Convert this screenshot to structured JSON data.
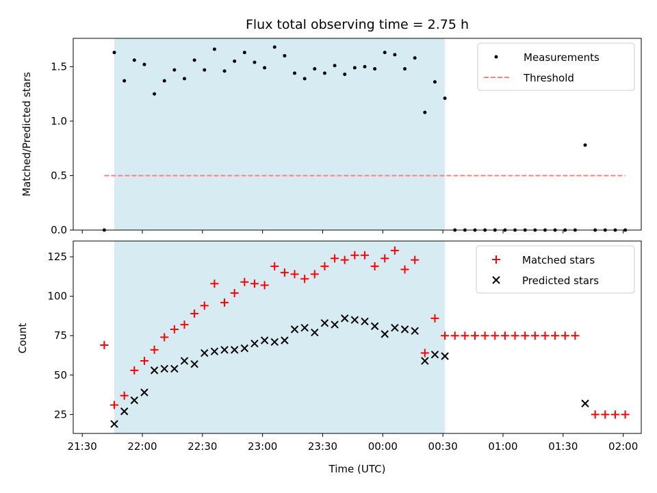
{
  "chart_data": {
    "title": "Flux total observing time = 2.75 h",
    "xlabel": "Time (UTC)",
    "x_tick_labels": [
      "21:30",
      "22:00",
      "22:30",
      "23:00",
      "23:30",
      "00:00",
      "00:30",
      "01:00",
      "01:30",
      "02:00"
    ],
    "x_ticks_min": [
      -30,
      0,
      30,
      60,
      90,
      120,
      150,
      180,
      210,
      240
    ],
    "x_range_min": [
      -34.5,
      249
    ],
    "x_reference": "22:00 UTC",
    "observing_window_min": [
      -14,
      151
    ],
    "observing_window_color": "#add8e6",
    "subplots": [
      {
        "type": "scatter",
        "ylabel": "Matched/Predicted stars",
        "ylim": [
          0,
          1.76
        ],
        "y_ticks": [
          0.0,
          0.5,
          1.0,
          1.5
        ],
        "y_tick_labels": [
          "0.0",
          "0.5",
          "1.0",
          "1.5"
        ],
        "legend": "top-right",
        "series": [
          {
            "name": "Measurements",
            "marker": "dot",
            "color": "#000000",
            "x": [
              -19,
              -14,
              -9,
              -4,
              1,
              6,
              11,
              16,
              21,
              26,
              31,
              36,
              41,
              46,
              51,
              56,
              61,
              66,
              71,
              76,
              81,
              86,
              91,
              96,
              101,
              106,
              111,
              116,
              121,
              126,
              131,
              136,
              141,
              146,
              151,
              156,
              161,
              166,
              171,
              176,
              181,
              186,
              191,
              196,
              201,
              206,
              211,
              216,
              221,
              226,
              231,
              236,
              241
            ],
            "y": [
              0,
              1.63,
              1.37,
              1.56,
              1.52,
              1.25,
              1.37,
              1.47,
              1.39,
              1.56,
              1.47,
              1.66,
              1.46,
              1.55,
              1.63,
              1.54,
              1.49,
              1.68,
              1.6,
              1.44,
              1.39,
              1.48,
              1.44,
              1.51,
              1.43,
              1.49,
              1.5,
              1.48,
              1.63,
              1.61,
              1.48,
              1.58,
              1.08,
              1.36,
              1.21,
              0,
              0,
              0,
              0,
              0,
              0,
              0,
              0,
              0,
              0,
              0,
              0,
              0,
              0.78,
              0,
              0,
              0,
              0
            ]
          },
          {
            "name": "Threshold",
            "marker": "dashed-line",
            "color": "#ff7f7f",
            "x": [
              -19,
              241
            ],
            "y": [
              0.5,
              0.5
            ]
          }
        ]
      },
      {
        "type": "scatter",
        "ylabel": "Count",
        "ylim": [
          13,
          135
        ],
        "y_ticks": [
          25,
          50,
          75,
          100,
          125
        ],
        "y_tick_labels": [
          "25",
          "50",
          "75",
          "100",
          "125"
        ],
        "legend": "top-right",
        "series": [
          {
            "name": "Matched stars",
            "marker": "plus",
            "color": "#ff0000",
            "x": [
              -19,
              -14,
              -9,
              -4,
              1,
              6,
              11,
              16,
              21,
              26,
              31,
              36,
              41,
              46,
              51,
              56,
              61,
              66,
              71,
              76,
              81,
              86,
              91,
              96,
              101,
              106,
              111,
              116,
              121,
              126,
              131,
              136,
              141,
              146,
              151,
              156,
              161,
              166,
              171,
              176,
              181,
              186,
              191,
              196,
              201,
              206,
              211,
              216,
              226,
              231,
              236,
              241
            ],
            "y": [
              69,
              31,
              37,
              53,
              59,
              66,
              74,
              79,
              82,
              89,
              94,
              108,
              96,
              102,
              109,
              108,
              107,
              119,
              115,
              114,
              111,
              114,
              119,
              124,
              123,
              126,
              126,
              119,
              124,
              129,
              117,
              123,
              64,
              86,
              75,
              75,
              75,
              75,
              75,
              75,
              75,
              75,
              75,
              75,
              75,
              75,
              75,
              75,
              25,
              25,
              25,
              25
            ]
          },
          {
            "name": "Predicted stars",
            "marker": "x",
            "color": "#000000",
            "x": [
              -14,
              -9,
              -4,
              1,
              6,
              11,
              16,
              21,
              26,
              31,
              36,
              41,
              46,
              51,
              56,
              61,
              66,
              71,
              76,
              81,
              86,
              91,
              96,
              101,
              106,
              111,
              116,
              121,
              126,
              131,
              136,
              141,
              146,
              151,
              221
            ],
            "y": [
              19,
              27,
              34,
              39,
              53,
              54,
              54,
              59,
              57,
              64,
              65,
              66,
              66,
              67,
              70,
              72,
              71,
              72,
              79,
              80,
              77,
              83,
              82,
              86,
              85,
              84,
              81,
              76,
              80,
              79,
              78,
              59,
              63,
              62,
              32
            ]
          }
        ]
      }
    ]
  }
}
